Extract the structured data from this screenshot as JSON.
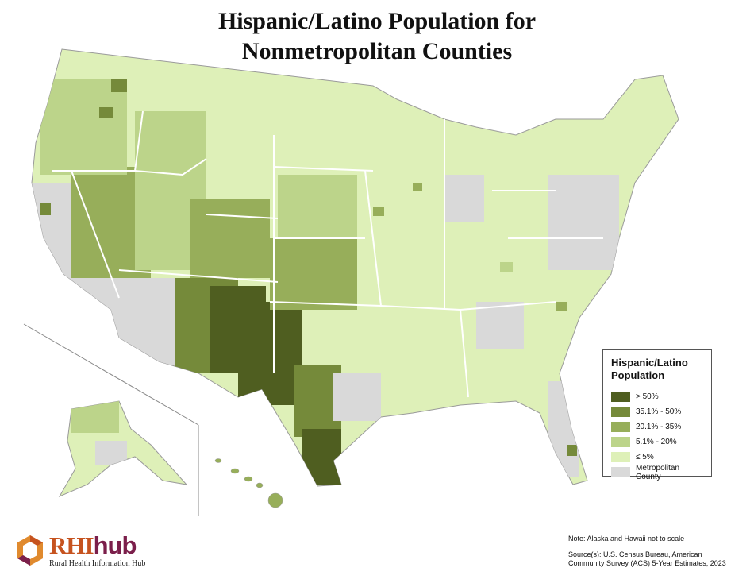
{
  "title_line1": "Hispanic/Latino Population for",
  "title_line2": "Nonmetropolitan Counties",
  "legend": {
    "title_line1": "Hispanic/Latino",
    "title_line2": "Population",
    "items": [
      {
        "label": "> 50%",
        "color": "#4f5e20"
      },
      {
        "label": "35.1% - 50%",
        "color": "#758a3a"
      },
      {
        "label": "20.1% - 35%",
        "color": "#97ae5a"
      },
      {
        "label": "5.1% - 20%",
        "color": "#bcd48a"
      },
      {
        "label": "≤ 5%",
        "color": "#def0b8"
      },
      {
        "label": "Metropolitan County",
        "color": "#d9d9d9"
      }
    ]
  },
  "note": "Note: Alaska and Hawaii not to scale",
  "source_line1": "Source(s): U.S. Census Bureau, American",
  "source_line2": "Community Survey (ACS) 5-Year Estimates, 2023",
  "logo": {
    "brand_part1": "RHI",
    "brand_part2": "hub",
    "subtitle": "Rural Health Information Hub"
  }
}
